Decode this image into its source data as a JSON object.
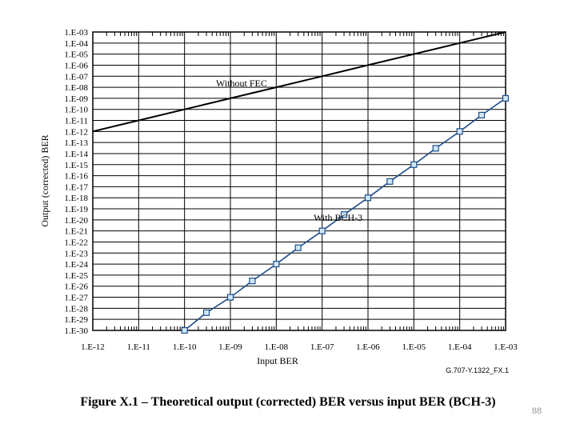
{
  "caption": "Figure X.1 – Theoretical output (corrected) BER versus input BER (BCH-3)",
  "figure_id": "G.707-Y.1322_FX.1",
  "page_number": "88",
  "colors": {
    "without_fec": "#000000",
    "with_bch3_line": "#1f4e8c",
    "with_bch3_marker_fill": "#cfe6f5",
    "grid": "#000000"
  },
  "chart_data": {
    "type": "line",
    "xlabel": "Input BER",
    "ylabel": "Output (corrected) BER",
    "x_scale": "log",
    "y_scale": "log",
    "xlim": [
      "1.E-12",
      "1.E-03"
    ],
    "ylim": [
      "1.E-30",
      "1.E-03"
    ],
    "x_ticks": [
      "1.E-12",
      "1.E-11",
      "1.E-10",
      "1.E-09",
      "1.E-08",
      "1.E-07",
      "1.E-06",
      "1.E-05",
      "1.E-04",
      "1.E-03"
    ],
    "y_ticks": [
      "1.E-03",
      "1.E-04",
      "1.E-05",
      "1.E-06",
      "1.E-07",
      "1.E-08",
      "1.E-09",
      "1.E-10",
      "1.E-11",
      "1.E-12",
      "1.E-13",
      "1.E-14",
      "1.E-15",
      "1.E-16",
      "1.E-17",
      "1.E-18",
      "1.E-19",
      "1.E-20",
      "1.E-21",
      "1.E-22",
      "1.E-23",
      "1.E-24",
      "1.E-25",
      "1.E-26",
      "1.E-27",
      "1.E-28",
      "1.E-29",
      "1.E-30"
    ],
    "grid": true,
    "series": [
      {
        "name": "Without FEC",
        "markers": false,
        "x": [
          "1.E-12",
          "1.E-11",
          "1.E-10",
          "1.E-09",
          "1.E-08",
          "1.E-07",
          "1.E-06",
          "1.E-05",
          "1.E-04",
          "1.E-03"
        ],
        "y": [
          "1.E-12",
          "1.E-11",
          "1.E-10",
          "1.E-09",
          "1.E-08",
          "1.E-07",
          "1.E-06",
          "1.E-05",
          "1.E-04",
          "1.E-03"
        ]
      },
      {
        "name": "With BCH-3",
        "markers": true,
        "x": [
          "1.E-10",
          "3.E-10",
          "1.E-09",
          "3.E-09",
          "1.E-08",
          "3.E-08",
          "1.E-07",
          "3.E-07",
          "1.E-06",
          "3.E-06",
          "1.E-05",
          "3.E-05",
          "1.E-04",
          "3.E-04",
          "1.E-03"
        ],
        "y": [
          "1.E-30",
          "4.E-29",
          "1.E-27",
          "3.E-26",
          "1E-24",
          "3E-23",
          "1E-21",
          "3E-20",
          "1E-18",
          "3E-17",
          "1E-15",
          "3E-14",
          "1E-12",
          "3E-11",
          "1E-09"
        ]
      }
    ]
  }
}
